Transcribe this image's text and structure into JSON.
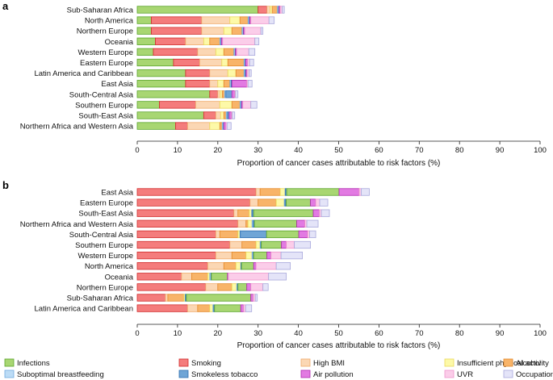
{
  "figure": {
    "panel_a": "a",
    "panel_b": "b"
  },
  "chart_data": [
    {
      "type": "bar",
      "orientation": "horizontal",
      "stacked": true,
      "panel": "a",
      "xlabel": "Proportion of cancer cases attributable to risk factors (%)",
      "xlim": [
        0,
        100
      ],
      "xticks": [
        0,
        10,
        20,
        30,
        40,
        50,
        60,
        70,
        80,
        90,
        100
      ],
      "categories": [
        "Sub-Saharan Africa",
        "North America",
        "Northern Europe",
        "Oceania",
        "Western Europe",
        "Eastern Europe",
        "Latin America and Caribbean",
        "East Asia",
        "South-Central Asia",
        "Southern Europe",
        "South-East Asia",
        "Northern Africa and Western Asia"
      ],
      "series": [
        {
          "key": "infections",
          "name": "Infections",
          "values": [
            30,
            3.5,
            3.5,
            4.5,
            4.0,
            9.0,
            12.0,
            12.0,
            18.0,
            5.5,
            16.5,
            9.5
          ]
        },
        {
          "key": "smoking",
          "name": "Smoking",
          "values": [
            2.2,
            12.5,
            12.5,
            7.5,
            11.0,
            6.5,
            6.0,
            6.0,
            2.0,
            9.0,
            3.0,
            3.0
          ]
        },
        {
          "key": "high_bmi",
          "name": "High BMI",
          "values": [
            0.8,
            7.0,
            5.5,
            4.5,
            4.5,
            5.5,
            4.5,
            2.0,
            0.6,
            6.0,
            1.2,
            5.5
          ]
        },
        {
          "key": "insufficient_activity",
          "name": "Insufficient physical activity",
          "values": [
            0.5,
            2.5,
            2.0,
            1.5,
            2.0,
            1.5,
            2.0,
            1.5,
            0.5,
            3.0,
            0.8,
            2.5
          ]
        },
        {
          "key": "alcohol",
          "name": "Alcohol",
          "values": [
            1.3,
            2.0,
            2.5,
            2.5,
            2.5,
            4.0,
            2.0,
            1.5,
            0.6,
            2.0,
            0.6,
            0.6
          ]
        },
        {
          "key": "breastfeeding",
          "name": "Suboptimal breastfeeding",
          "values": [
            0.3,
            0.3,
            0.3,
            0.3,
            0.3,
            0.3,
            0.3,
            0.3,
            0.3,
            0.3,
            0.3,
            0.3
          ]
        },
        {
          "key": "smokeless",
          "name": "Smokeless tobacco",
          "values": [
            0.1,
            0.1,
            0.1,
            0.1,
            0.1,
            0.1,
            0.2,
            0.2,
            1.5,
            0.1,
            0.4,
            0.1
          ]
        },
        {
          "key": "air_pollution",
          "name": "Air pollution",
          "values": [
            0.3,
            0.3,
            0.3,
            0.3,
            0.3,
            0.5,
            0.3,
            3.7,
            0.7,
            0.3,
            0.6,
            0.5
          ]
        },
        {
          "key": "uvr",
          "name": "UVR",
          "values": [
            0.5,
            4.5,
            4.0,
            8.0,
            3.0,
            0.5,
            0.5,
            0.3,
            0.2,
            2.0,
            0.2,
            0.3
          ]
        },
        {
          "key": "occupational",
          "name": "Occupational",
          "values": [
            0.5,
            1.3,
            0.5,
            1.0,
            1.5,
            1.0,
            0.5,
            1.0,
            0.6,
            1.5,
            0.6,
            1.0
          ]
        }
      ]
    },
    {
      "type": "bar",
      "orientation": "horizontal",
      "stacked": true,
      "panel": "b",
      "xlabel": "Proportion of cancer cases attributable to risk factors (%)",
      "xlim": [
        0,
        100
      ],
      "xticks": [
        0,
        10,
        20,
        30,
        40,
        50,
        60,
        70,
        80,
        90,
        100
      ],
      "categories": [
        "East Asia",
        "Eastern Europe",
        "South-East Asia",
        "Northern Africa and Western Asia",
        "South-Central Asia",
        "Southern Europe",
        "Western Europe",
        "North America",
        "Oceania",
        "Northern Europe",
        "Sub-Saharan Africa",
        "Latin America and Caribbean"
      ],
      "series": [
        {
          "key": "smoking",
          "name": "Smoking",
          "values": [
            29.5,
            28.0,
            24.0,
            25.0,
            19.5,
            23.0,
            19.5,
            17.5,
            11.0,
            17.0,
            7.0,
            12.5
          ]
        },
        {
          "key": "high_bmi",
          "name": "High BMI",
          "values": [
            1.0,
            2.0,
            1.0,
            2.0,
            1.0,
            3.0,
            4.0,
            4.0,
            2.5,
            3.0,
            0.6,
            2.5
          ]
        },
        {
          "key": "alcohol",
          "name": "Alcohol",
          "values": [
            5.0,
            4.5,
            2.8,
            0.5,
            4.5,
            3.5,
            3.5,
            3.0,
            4.0,
            3.5,
            4.0,
            3.0
          ]
        },
        {
          "key": "insufficient_activity",
          "name": "Insufficient physical activity",
          "values": [
            1.2,
            2.0,
            0.6,
            1.0,
            0.5,
            1.0,
            1.5,
            1.2,
            0.5,
            1.2,
            0.3,
            0.8
          ]
        },
        {
          "key": "breastfeeding",
          "name": "Suboptimal breastfeeding",
          "values": [
            0.1,
            0.2,
            0.1,
            0.3,
            0.1,
            0.2,
            0.3,
            0.1,
            0.3,
            0.2,
            0.1,
            0.2
          ]
        },
        {
          "key": "smokeless",
          "name": "Smokeless tobacco",
          "values": [
            0.3,
            0.3,
            0.4,
            0.3,
            6.5,
            0.1,
            0.1,
            0.1,
            0.1,
            0.1,
            0.2,
            0.2
          ]
        },
        {
          "key": "infections",
          "name": "Infections",
          "values": [
            13.0,
            6.0,
            14.8,
            10.5,
            8.0,
            5.0,
            3.3,
            3.0,
            4.0,
            2.2,
            16.0,
            6.5
          ]
        },
        {
          "key": "air_pollution",
          "name": "Air pollution",
          "values": [
            5.0,
            1.3,
            1.5,
            2.0,
            2.2,
            1.2,
            1.0,
            0.6,
            0.2,
            1.0,
            0.6,
            0.7
          ]
        },
        {
          "key": "uvr",
          "name": "UVR",
          "values": [
            0.5,
            1.0,
            0.5,
            0.5,
            0.5,
            2.0,
            2.5,
            5.0,
            10.0,
            3.0,
            0.5,
            0.5
          ]
        },
        {
          "key": "occupational",
          "name": "Occupational",
          "values": [
            2.0,
            2.0,
            2.0,
            2.8,
            1.5,
            4.0,
            5.3,
            3.5,
            4.4,
            1.3,
            0.5,
            1.5
          ]
        }
      ]
    }
  ],
  "legend": [
    {
      "key": "infections",
      "label": "Infections"
    },
    {
      "key": "smoking",
      "label": "Smoking"
    },
    {
      "key": "high_bmi",
      "label": "High BMI"
    },
    {
      "key": "insufficient_activity",
      "label": "Insufficient physical activity"
    },
    {
      "key": "alcohol",
      "label": "Alcohol"
    },
    {
      "key": "breastfeeding",
      "label": "Suboptimal breastfeeding"
    },
    {
      "key": "smokeless",
      "label": "Smokeless tobacco"
    },
    {
      "key": "air_pollution",
      "label": "Air pollution"
    },
    {
      "key": "uvr",
      "label": "UVR"
    },
    {
      "key": "occupational",
      "label": "Occupational"
    }
  ],
  "colors": {
    "infections": {
      "fill": "#a8d672",
      "stroke": "#5aa52a"
    },
    "smoking": {
      "fill": "#f47c7c",
      "stroke": "#d12b2b"
    },
    "high_bmi": {
      "fill": "#fbd7b4",
      "stroke": "#f0aa6a"
    },
    "insufficient_activity": {
      "fill": "#fdf9a8",
      "stroke": "#ead95a"
    },
    "alcohol": {
      "fill": "#f8b469",
      "stroke": "#e4892a"
    },
    "breastfeeding": {
      "fill": "#bcdcf6",
      "stroke": "#6ea9de"
    },
    "smokeless": {
      "fill": "#6fa5d6",
      "stroke": "#2f6fb0"
    },
    "air_pollution": {
      "fill": "#e27ae2",
      "stroke": "#b02ab0"
    },
    "uvr": {
      "fill": "#fbcde9",
      "stroke": "#ef94cb"
    },
    "occupational": {
      "fill": "#e4e4f8",
      "stroke": "#a8a8dc"
    }
  }
}
